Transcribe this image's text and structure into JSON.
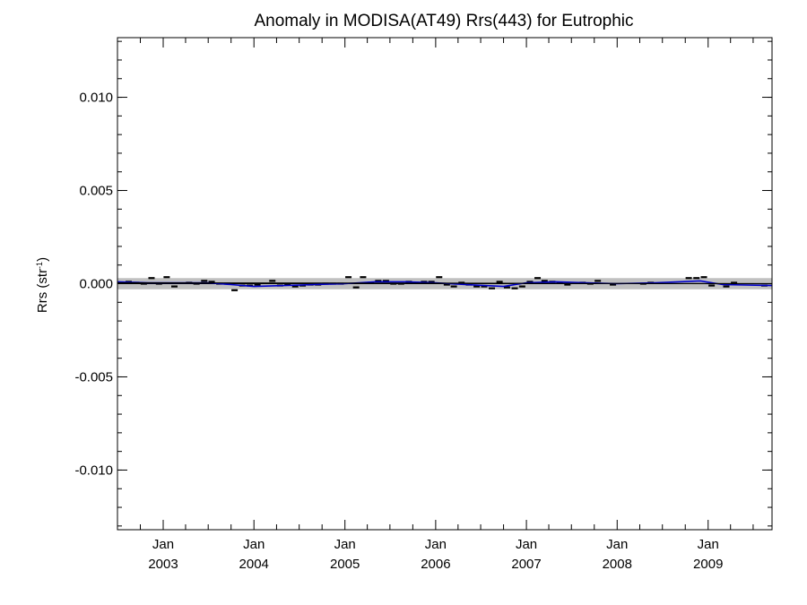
{
  "chart_data": {
    "type": "line",
    "title": "Anomaly in MODISA(AT49) Rrs(443) for Eutrophic",
    "ylabel_main": "Rrs (str",
    "ylabel_sup": "-1",
    "ylabel_close": ")",
    "xlabel": "",
    "ylim": [
      -0.0132,
      0.0132
    ],
    "xlim": [
      "2002-07-01",
      "2009-09-15"
    ],
    "y_ticks": [
      {
        "value": 0.01,
        "label": "0.010"
      },
      {
        "value": 0.005,
        "label": "0.005"
      },
      {
        "value": 0.0,
        "label": "0.000"
      },
      {
        "value": -0.005,
        "label": "-0.005"
      },
      {
        "value": -0.01,
        "label": "-0.010"
      }
    ],
    "y_minor_step": 0.001,
    "x_ticks": [
      {
        "date": "2003-01-01",
        "month": "Jan",
        "year": "2003"
      },
      {
        "date": "2004-01-01",
        "month": "Jan",
        "year": "2004"
      },
      {
        "date": "2005-01-01",
        "month": "Jan",
        "year": "2005"
      },
      {
        "date": "2006-01-01",
        "month": "Jan",
        "year": "2006"
      },
      {
        "date": "2007-01-01",
        "month": "Jan",
        "year": "2007"
      },
      {
        "date": "2008-01-01",
        "month": "Jan",
        "year": "2008"
      },
      {
        "date": "2009-01-01",
        "month": "Jan",
        "year": "2009"
      }
    ],
    "band": {
      "lower": -0.0003,
      "upper": 0.0003,
      "color": "#c0c0c0"
    },
    "zero_line": {
      "value": 0,
      "color": "#000000"
    },
    "series": [
      {
        "kind": "monthly",
        "color": "#000000",
        "points": [
          {
            "x": "2002-07-15",
            "y": 5e-05
          },
          {
            "x": "2002-08-15",
            "y": 0.0001
          },
          {
            "x": "2002-09-15",
            "y": 5e-05
          },
          {
            "x": "2002-10-15",
            "y": 0.0
          },
          {
            "x": "2002-11-15",
            "y": 0.0003
          },
          {
            "x": "2002-12-15",
            "y": 0.0
          },
          {
            "x": "2003-01-15",
            "y": 0.00035
          },
          {
            "x": "2003-02-15",
            "y": -0.00015
          },
          {
            "x": "2003-04-15",
            "y": 5e-05
          },
          {
            "x": "2003-05-15",
            "y": 0.0
          },
          {
            "x": "2003-06-15",
            "y": 0.00015
          },
          {
            "x": "2003-07-15",
            "y": 0.0001
          },
          {
            "x": "2003-08-15",
            "y": 0.0
          },
          {
            "x": "2003-09-15",
            "y": 0.0
          },
          {
            "x": "2003-10-15",
            "y": -0.00035
          },
          {
            "x": "2003-11-15",
            "y": -0.0001
          },
          {
            "x": "2003-12-15",
            "y": -0.0001
          },
          {
            "x": "2004-01-15",
            "y": -5e-05
          },
          {
            "x": "2004-03-15",
            "y": 0.00015
          },
          {
            "x": "2004-04-15",
            "y": -0.0001
          },
          {
            "x": "2004-05-15",
            "y": -5e-05
          },
          {
            "x": "2004-06-15",
            "y": -0.00015
          },
          {
            "x": "2004-07-15",
            "y": -0.0001
          },
          {
            "x": "2004-08-15",
            "y": -5e-05
          },
          {
            "x": "2004-09-15",
            "y": -5e-05
          },
          {
            "x": "2004-10-15",
            "y": 0.0
          },
          {
            "x": "2004-11-15",
            "y": 0.0
          },
          {
            "x": "2004-12-15",
            "y": 0.0
          },
          {
            "x": "2005-01-15",
            "y": 0.00035
          },
          {
            "x": "2005-02-15",
            "y": -0.0002
          },
          {
            "x": "2005-03-15",
            "y": 0.00035
          },
          {
            "x": "2005-04-15",
            "y": 5e-05
          },
          {
            "x": "2005-05-15",
            "y": 0.00015
          },
          {
            "x": "2005-06-15",
            "y": 0.00015
          },
          {
            "x": "2005-07-15",
            "y": 0.0
          },
          {
            "x": "2005-08-15",
            "y": 0.0
          },
          {
            "x": "2005-09-15",
            "y": 0.0001
          },
          {
            "x": "2005-10-15",
            "y": 5e-05
          },
          {
            "x": "2005-11-15",
            "y": 0.0001
          },
          {
            "x": "2005-12-15",
            "y": 0.0001
          },
          {
            "x": "2006-01-15",
            "y": 0.00035
          },
          {
            "x": "2006-02-15",
            "y": -5e-05
          },
          {
            "x": "2006-03-15",
            "y": -0.00015
          },
          {
            "x": "2006-04-15",
            "y": 5e-05
          },
          {
            "x": "2006-05-15",
            "y": -5e-05
          },
          {
            "x": "2006-06-15",
            "y": -0.00015
          },
          {
            "x": "2006-07-15",
            "y": -0.00015
          },
          {
            "x": "2006-08-15",
            "y": -0.00025
          },
          {
            "x": "2006-09-15",
            "y": 0.0001
          },
          {
            "x": "2006-10-15",
            "y": -0.0002
          },
          {
            "x": "2006-11-15",
            "y": -0.00025
          },
          {
            "x": "2006-12-15",
            "y": -0.00015
          },
          {
            "x": "2007-01-15",
            "y": 0.0001
          },
          {
            "x": "2007-02-15",
            "y": 0.0003
          },
          {
            "x": "2007-03-15",
            "y": 0.00015
          },
          {
            "x": "2007-04-15",
            "y": 0.0001
          },
          {
            "x": "2007-05-15",
            "y": 5e-05
          },
          {
            "x": "2007-06-15",
            "y": -5e-05
          },
          {
            "x": "2007-08-15",
            "y": 5e-05
          },
          {
            "x": "2007-09-15",
            "y": 0.0
          },
          {
            "x": "2007-10-15",
            "y": 0.00015
          },
          {
            "x": "2007-12-15",
            "y": -5e-05
          },
          {
            "x": "2008-04-15",
            "y": 0.0
          },
          {
            "x": "2008-05-15",
            "y": 5e-05
          },
          {
            "x": "2008-10-15",
            "y": 0.0003
          },
          {
            "x": "2008-11-15",
            "y": 0.0003
          },
          {
            "x": "2008-12-15",
            "y": 0.00035
          },
          {
            "x": "2009-01-15",
            "y": -0.0001
          },
          {
            "x": "2009-03-15",
            "y": -0.00015
          },
          {
            "x": "2009-04-15",
            "y": 5e-05
          },
          {
            "x": "2009-08-15",
            "y": -0.0001
          }
        ]
      },
      {
        "kind": "smoothed",
        "color": "#0000cc",
        "points": [
          {
            "x": "2002-07-01",
            "y": 0.0001
          },
          {
            "x": "2002-11-01",
            "y": 5e-05
          },
          {
            "x": "2003-03-01",
            "y": 5e-05
          },
          {
            "x": "2003-07-01",
            "y": 5e-05
          },
          {
            "x": "2003-10-01",
            "y": -5e-05
          },
          {
            "x": "2004-01-01",
            "y": -0.00015
          },
          {
            "x": "2004-05-01",
            "y": -0.0001
          },
          {
            "x": "2004-09-01",
            "y": -5e-05
          },
          {
            "x": "2005-01-01",
            "y": 0.0
          },
          {
            "x": "2005-05-01",
            "y": 0.0001
          },
          {
            "x": "2005-09-01",
            "y": 0.0001
          },
          {
            "x": "2006-01-01",
            "y": 5e-05
          },
          {
            "x": "2006-05-01",
            "y": -5e-05
          },
          {
            "x": "2006-10-01",
            "y": -0.00015
          },
          {
            "x": "2007-01-01",
            "y": 5e-05
          },
          {
            "x": "2007-05-01",
            "y": 0.0001
          },
          {
            "x": "2007-09-01",
            "y": 5e-05
          },
          {
            "x": "2008-01-01",
            "y": 0.0
          },
          {
            "x": "2008-06-01",
            "y": 5e-05
          },
          {
            "x": "2008-12-01",
            "y": 0.00015
          },
          {
            "x": "2009-03-01",
            "y": -5e-05
          },
          {
            "x": "2009-09-15",
            "y": -0.0001
          }
        ]
      },
      {
        "kind": "trend",
        "color": "#000000",
        "points": [
          {
            "x": "2002-07-01",
            "y": 5e-05
          },
          {
            "x": "2009-09-15",
            "y": 0.0
          }
        ]
      }
    ]
  }
}
